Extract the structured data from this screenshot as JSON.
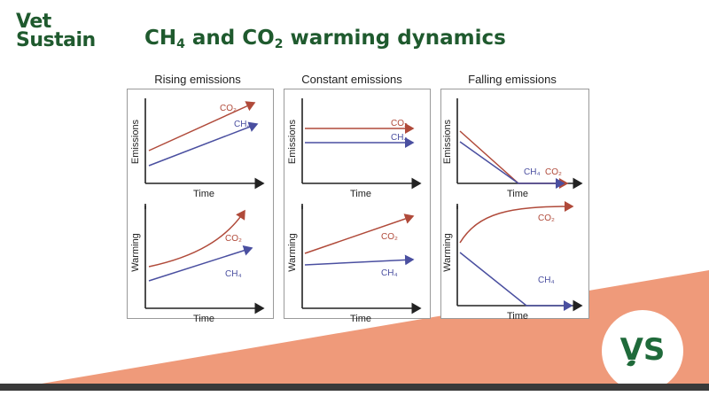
{
  "logo": {
    "line1": "Vet",
    "line2": "Sustain"
  },
  "title": {
    "prefix": "CH",
    "sub1": "4",
    "mid": " and CO",
    "sub2": "2",
    "suffix": " warming dynamics"
  },
  "colors": {
    "brand_green": "#1f5a2e",
    "co2": "#b04a3a",
    "ch4": "#4a4fa0",
    "accent_salmon": "#ef9a7a"
  },
  "panels": [
    {
      "heading": "Rising emissions"
    },
    {
      "heading": "Constant emissions"
    },
    {
      "heading": "Falling emissions"
    }
  ],
  "axes": {
    "x_label": "Time",
    "y_top": "Emissions",
    "y_bottom": "Warming"
  },
  "series": {
    "co2": "CO₂",
    "ch4": "CH₄"
  },
  "corner_logo": "VS"
}
